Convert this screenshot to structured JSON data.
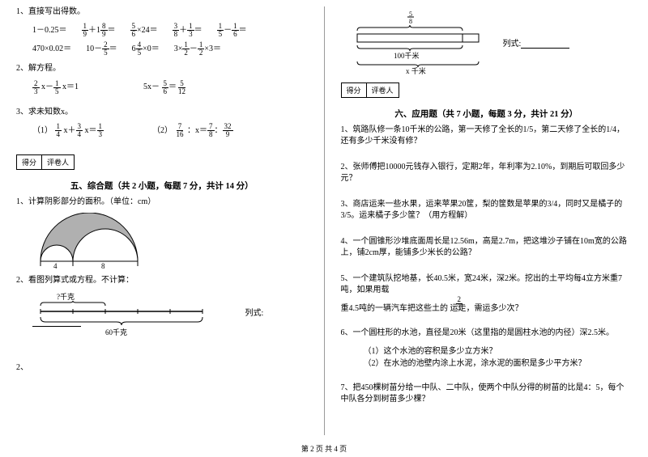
{
  "left": {
    "q1": {
      "title": "1、直接写出得数。",
      "row1": [
        "1－0.25＝",
        "frac:1,9|＋1|frac:8,9|＝",
        "frac:5,6|×24＝",
        "frac:3,8|＋|frac:1,3|＝",
        "frac:1,5|－|frac:1,6|＝"
      ],
      "row2": [
        "470×0.02＝",
        "10－|frac:2,5|＝",
        "6|frac:4,5|×0＝",
        "3×|frac:1,2|－|frac:1,2|×3＝"
      ]
    },
    "q2": {
      "title": "2、解方程。",
      "eq1_parts": [
        "frac:2,3| x－|frac:1,5| x＝1"
      ],
      "eq2_parts": [
        "5x－ |frac:5,6|＝|frac:5,12"
      ]
    },
    "q3": {
      "title": "3、求未知数x。",
      "eq1_label": "（1）",
      "eq1_parts": [
        "frac:1,4| x＋|frac:3,4| x＝|frac:1,3"
      ],
      "eq2_label": "（2）",
      "eq2_parts": [
        "frac:7,16| ：x＝|frac:7,8|：|frac:32,9"
      ]
    },
    "section5": {
      "score_labels": [
        "得分",
        "评卷人"
      ],
      "title": "五、综合题（共 2 小题，每题 7 分，共计 14 分）"
    },
    "q5_1": {
      "title": "1、计算阴影部分的面积。（单位：cm）",
      "labels": {
        "left_num": "4",
        "right_num": "8"
      }
    },
    "q5_2": {
      "title": "2、看图列算式或方程。不计算：",
      "top_label": "?千克",
      "bottom_label": "60千克",
      "formula_label": "列式:",
      "trailing": "2、"
    }
  },
  "right": {
    "diagram": {
      "top_frac": "frac:5,8",
      "mid_label": "100千米",
      "bottom_label": "x 千米",
      "formula_label": "列式:"
    },
    "section6": {
      "score_labels": [
        "得分",
        "评卷人"
      ],
      "title": "六、应用题（共 7 小题，每题 3 分，共计 21 分）"
    },
    "q1": "1、筑路队修一条10千米的公路，第一天修了全长的1/5，第二天修了全长的1/4，还有多少千米没有修？",
    "q2": "2、张师傅把10000元钱存入银行，定期2年，年利率为2.10%，到期后可取回多少元？",
    "q3": "3、商店运来一些水果，运来苹果20筐，梨的筐数是苹果的3/4，同时又是橘子的3/5。运来橘子多少筐？（用方程解）",
    "q4": "4、一个圆锥形沙堆底面周长是12.56m，高是2.7m，把这堆沙子铺在10m宽的公路上，铺2cm厚，能铺多少米长的公路？",
    "q5_pre": "5、一个建筑队挖地基，长40.5米，宽24米，深2米。挖出的土平均每4立方米重7吨，如果用载",
    "q5_frac": "frac:2,3",
    "q5_post": "重4.5吨的一辆汽车把这些土的    运走，需运多少次？",
    "q6": {
      "main": "6、一个圆柱形的水池，直径是20米（这里指的是圆柱水池的内径）深2.5米。",
      "sub1": "（1）这个水池的容积是多少立方米？",
      "sub2": "（2）在水池的池壁内涂上水泥，涂水泥的面积是多少平方米？"
    },
    "q7": "7、把450棵树苗分给一中队、二中队，使两个中队分得的树苗的比是4：5，每个中队各分到树苗多少棵？"
  },
  "footer": "第 2 页 共 4 页",
  "colors": {
    "text": "#000000",
    "bg": "#ffffff",
    "divider": "#999999",
    "shade": "#b0b0b0"
  }
}
